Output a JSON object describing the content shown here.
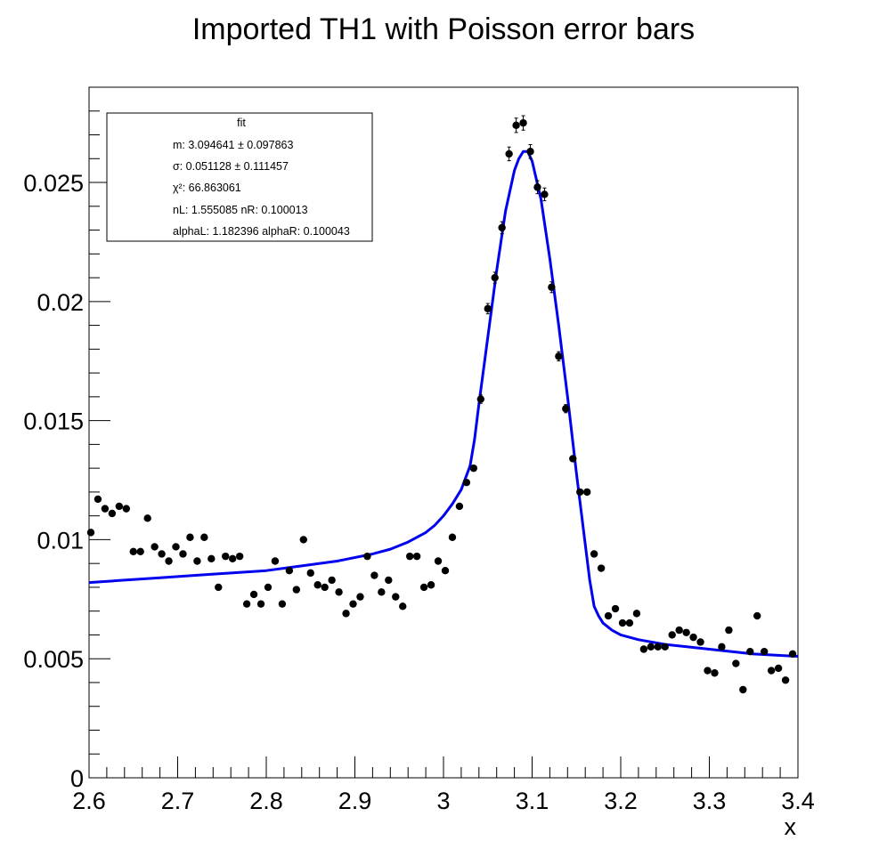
{
  "chart_data": {
    "type": "scatter",
    "title": "Imported TH1 with Poisson error bars",
    "xlabel": "x",
    "ylabel": "",
    "xlim": [
      2.6,
      3.4
    ],
    "ylim": [
      0,
      0.029
    ],
    "x_ticks": [
      "2.6",
      "2.7",
      "2.8",
      "2.9",
      "3",
      "3.1",
      "3.2",
      "3.3",
      "3.4"
    ],
    "y_ticks": [
      "0",
      "0.005",
      "0.01",
      "0.015",
      "0.02",
      "0.025"
    ],
    "grid": false,
    "colors": {
      "data": "#000000",
      "fit": "#0000ee",
      "frame": "#000000"
    },
    "series": [
      {
        "kind": "data-points",
        "x": [
          2.602,
          2.61,
          2.618,
          2.626,
          2.634,
          2.642,
          2.65,
          2.658,
          2.666,
          2.674,
          2.682,
          2.69,
          2.698,
          2.706,
          2.714,
          2.722,
          2.73,
          2.738,
          2.746,
          2.754,
          2.762,
          2.77,
          2.778,
          2.786,
          2.794,
          2.802,
          2.81,
          2.818,
          2.826,
          2.834,
          2.842,
          2.85,
          2.858,
          2.866,
          2.874,
          2.882,
          2.89,
          2.898,
          2.906,
          2.914,
          2.922,
          2.93,
          2.938,
          2.946,
          2.954,
          2.962,
          2.97,
          2.978,
          2.986,
          2.994,
          3.002,
          3.01,
          3.018,
          3.026,
          3.034,
          3.042,
          3.05,
          3.058,
          3.066,
          3.074,
          3.082,
          3.09,
          3.098,
          3.106,
          3.114,
          3.122,
          3.13,
          3.138,
          3.146,
          3.154,
          3.162,
          3.17,
          3.178,
          3.186,
          3.194,
          3.202,
          3.21,
          3.218,
          3.226,
          3.234,
          3.242,
          3.25,
          3.258,
          3.266,
          3.274,
          3.282,
          3.29,
          3.298,
          3.306,
          3.314,
          3.322,
          3.33,
          3.338,
          3.346,
          3.354,
          3.362,
          3.37,
          3.378,
          3.386,
          3.394
        ],
        "y": [
          0.0103,
          0.0117,
          0.0113,
          0.0111,
          0.0114,
          0.0113,
          0.0095,
          0.0095,
          0.0109,
          0.0097,
          0.0094,
          0.0091,
          0.0097,
          0.0094,
          0.0101,
          0.0091,
          0.0101,
          0.0092,
          0.008,
          0.0093,
          0.0092,
          0.0093,
          0.0073,
          0.0077,
          0.0073,
          0.008,
          0.0091,
          0.0073,
          0.0087,
          0.0079,
          0.01,
          0.0086,
          0.0081,
          0.008,
          0.0083,
          0.0078,
          0.0069,
          0.0073,
          0.0076,
          0.0093,
          0.0085,
          0.0078,
          0.0083,
          0.0076,
          0.0072,
          0.0093,
          0.0093,
          0.008,
          0.0081,
          0.0091,
          0.0087,
          0.0101,
          0.0114,
          0.0124,
          0.013,
          0.0159,
          0.0197,
          0.021,
          0.0231,
          0.0262,
          0.0274,
          0.0275,
          0.0263,
          0.0248,
          0.0245,
          0.0206,
          0.0177,
          0.0155,
          0.0134,
          0.012,
          0.012,
          0.0094,
          0.0088,
          0.0068,
          0.0071,
          0.0065,
          0.0065,
          0.0069,
          0.0054,
          0.0055,
          0.0055,
          0.0055,
          0.006,
          0.0062,
          0.0061,
          0.0059,
          0.0057,
          0.0045,
          0.0044,
          0.0055,
          0.0062,
          0.0048,
          0.0037,
          0.0053,
          0.0068,
          0.0053,
          0.0045,
          0.0046,
          0.0041,
          0.0052
        ]
      },
      {
        "kind": "fit-curve",
        "name": "fit",
        "x": [
          2.6,
          2.64,
          2.68,
          2.72,
          2.76,
          2.8,
          2.84,
          2.88,
          2.92,
          2.94,
          2.96,
          2.98,
          2.99,
          3.0,
          3.01,
          3.02,
          3.03,
          3.035,
          3.04,
          3.05,
          3.06,
          3.07,
          3.08,
          3.085,
          3.09,
          3.095,
          3.1,
          3.11,
          3.12,
          3.13,
          3.14,
          3.15,
          3.16,
          3.165,
          3.17,
          3.175,
          3.18,
          3.19,
          3.2,
          3.22,
          3.25,
          3.3,
          3.35,
          3.4
        ],
        "y": [
          0.0082,
          0.0083,
          0.0084,
          0.0085,
          0.0086,
          0.0087,
          0.0089,
          0.0091,
          0.0094,
          0.0096,
          0.0099,
          0.0103,
          0.0106,
          0.011,
          0.0115,
          0.0121,
          0.0131,
          0.0142,
          0.0157,
          0.0185,
          0.0213,
          0.0238,
          0.0255,
          0.026,
          0.0263,
          0.0263,
          0.0259,
          0.0243,
          0.0218,
          0.019,
          0.016,
          0.0128,
          0.0098,
          0.0083,
          0.0072,
          0.0068,
          0.0065,
          0.0062,
          0.006,
          0.0058,
          0.0056,
          0.0054,
          0.0052,
          0.0051
        ]
      }
    ],
    "legend": {
      "position": "top-left",
      "title": "fit",
      "lines": [
        "m: 3.094641 ± 0.097863",
        "σ: 0.051128 ± 0.111457",
        "χ²: 66.863061",
        "nL: 1.555085 nR: 0.100013",
        "alphaL: 1.182396 alphaR: 0.100043"
      ]
    }
  }
}
